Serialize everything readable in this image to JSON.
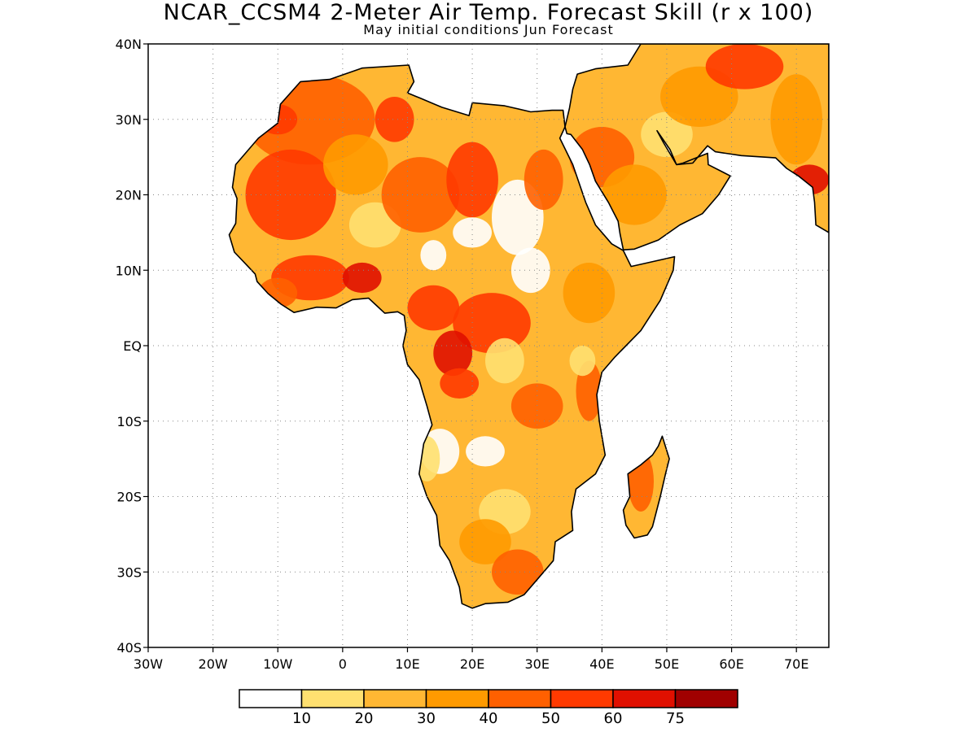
{
  "title": "NCAR_CCSM4 2-Meter Air Temp. Forecast Skill (r x 100)",
  "subtitle": "May initial conditions  Jun Forecast",
  "map": {
    "lon_range": [
      -30,
      75
    ],
    "lat_range": [
      -40,
      40
    ],
    "lat_ticks": [
      {
        "value": 40,
        "label": "40N"
      },
      {
        "value": 30,
        "label": "30N"
      },
      {
        "value": 20,
        "label": "20N"
      },
      {
        "value": 10,
        "label": "10N"
      },
      {
        "value": 0,
        "label": "EQ"
      },
      {
        "value": -10,
        "label": "10S"
      },
      {
        "value": -20,
        "label": "20S"
      },
      {
        "value": -30,
        "label": "30S"
      },
      {
        "value": -40,
        "label": "40S"
      }
    ],
    "lon_ticks": [
      {
        "value": -30,
        "label": "30W"
      },
      {
        "value": -20,
        "label": "20W"
      },
      {
        "value": -10,
        "label": "10W"
      },
      {
        "value": 0,
        "label": "0"
      },
      {
        "value": 10,
        "label": "10E"
      },
      {
        "value": 20,
        "label": "20E"
      },
      {
        "value": 30,
        "label": "30E"
      },
      {
        "value": 40,
        "label": "40E"
      },
      {
        "value": 50,
        "label": "50E"
      },
      {
        "value": 60,
        "label": "60E"
      },
      {
        "value": 70,
        "label": "70E"
      }
    ],
    "gridlines": true
  },
  "colorbar": {
    "colors": [
      "#ffffff",
      "#ffe070",
      "#ffb733",
      "#ff9a00",
      "#ff6000",
      "#ff3a00",
      "#e01000",
      "#a00000"
    ],
    "labels": [
      "10",
      "20",
      "30",
      "40",
      "50",
      "60",
      "75"
    ]
  }
}
